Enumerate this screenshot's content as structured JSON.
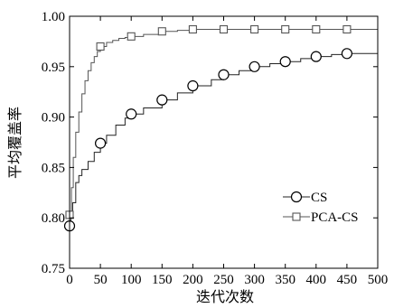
{
  "chart_data": {
    "type": "line",
    "title": "",
    "xlabel": "迭代次数",
    "ylabel": "平均覆盖率",
    "xlim": [
      0,
      500
    ],
    "ylim": [
      0.75,
      1.0
    ],
    "xticks": [
      "0",
      "50",
      "100",
      "150",
      "200",
      "250",
      "300",
      "350",
      "400",
      "450",
      "500"
    ],
    "yticks": [
      "0.75",
      "0.80",
      "0.85",
      "0.90",
      "0.95",
      "1.00"
    ],
    "grid": false,
    "legend_position": "lower-right",
    "series": [
      {
        "name": "CS",
        "marker": "circle",
        "color": "#222222",
        "marker_x": [
          0,
          50,
          100,
          150,
          200,
          250,
          300,
          350,
          400,
          450
        ],
        "x": [
          0,
          2,
          5,
          10,
          15,
          20,
          30,
          40,
          50,
          60,
          75,
          90,
          100,
          120,
          150,
          175,
          200,
          230,
          250,
          275,
          300,
          325,
          350,
          375,
          400,
          425,
          450,
          500
        ],
        "y": [
          0.792,
          0.8,
          0.815,
          0.835,
          0.842,
          0.848,
          0.856,
          0.865,
          0.874,
          0.882,
          0.892,
          0.899,
          0.903,
          0.909,
          0.917,
          0.924,
          0.931,
          0.937,
          0.942,
          0.946,
          0.95,
          0.953,
          0.955,
          0.958,
          0.96,
          0.962,
          0.963,
          0.964
        ]
      },
      {
        "name": "PCA-CS",
        "marker": "square",
        "color": "#555555",
        "marker_x": [
          0,
          50,
          100,
          150,
          200,
          250,
          300,
          350,
          400,
          450
        ],
        "x": [
          0,
          3,
          6,
          10,
          15,
          20,
          25,
          30,
          35,
          40,
          45,
          50,
          60,
          70,
          80,
          90,
          100,
          120,
          150,
          175,
          200,
          250,
          300,
          350,
          400,
          450,
          500
        ],
        "y": [
          0.803,
          0.83,
          0.86,
          0.885,
          0.905,
          0.923,
          0.936,
          0.946,
          0.954,
          0.96,
          0.965,
          0.97,
          0.974,
          0.976,
          0.978,
          0.979,
          0.98,
          0.982,
          0.985,
          0.986,
          0.987,
          0.987,
          0.987,
          0.987,
          0.987,
          0.987,
          0.987
        ]
      }
    ]
  }
}
